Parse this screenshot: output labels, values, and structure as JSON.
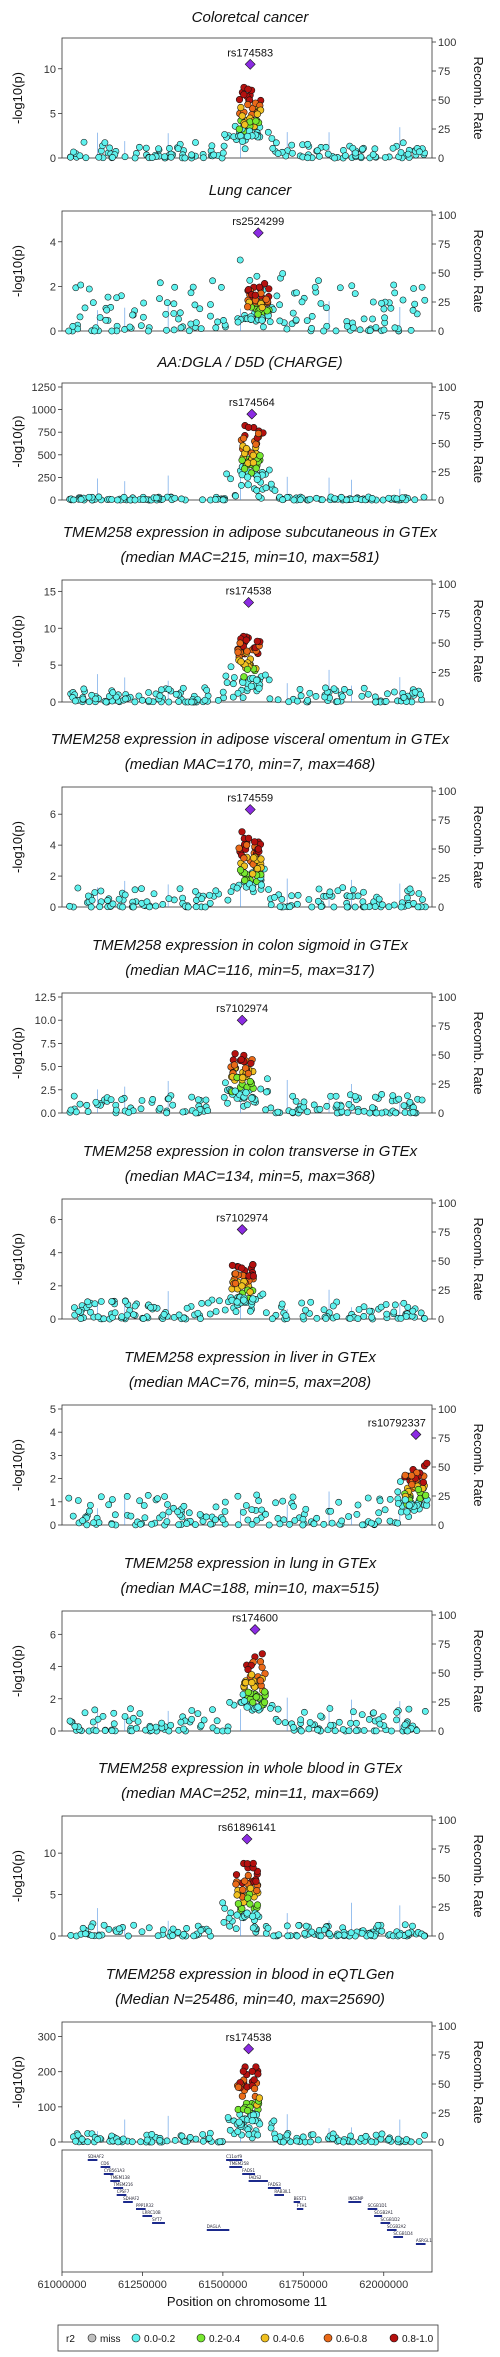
{
  "chart_data": {
    "type": "scatter",
    "x_range": [
      61000000,
      62150000
    ],
    "x_ticks": [
      61000000,
      61250000,
      61500000,
      61750000,
      62000000
    ],
    "x_tick_labels": [
      "61000000",
      "61250000",
      "61500000",
      "61750000",
      "62000000"
    ],
    "xlabel": "Position on chromosome 11",
    "ylabel_left": "-log10(p)",
    "ylabel_right": "Recomb. Rate",
    "right_ticks": [
      0,
      25,
      50,
      75,
      100
    ],
    "legend": {
      "title": "r2",
      "entries": [
        {
          "label": "miss",
          "color": "#bfbfbf"
        },
        {
          "label": "0.0-0.2",
          "color": "#5ff2ee"
        },
        {
          "label": "0.2-0.4",
          "color": "#77e830"
        },
        {
          "label": "0.4-0.6",
          "color": "#f0c020"
        },
        {
          "label": "0.6-0.8",
          "color": "#ea6a18"
        },
        {
          "label": "0.8-1.0",
          "color": "#b5110f"
        }
      ]
    },
    "panels": [
      {
        "title_lines": [
          "Coloretcal cancer"
        ],
        "lead_snp": "rs174583",
        "lead_x": 61585000,
        "lead_y": 10.5,
        "ymax": 13,
        "y_ticks": [
          0,
          5,
          10
        ],
        "peak": 9.0,
        "bg": 1.8
      },
      {
        "title_lines": [
          "Lung cancer"
        ],
        "lead_snp": "rs2524299",
        "lead_x": 61610000,
        "lead_y": 4.4,
        "ymax": 5.2,
        "y_ticks": [
          0,
          2,
          4
        ],
        "peak": 2.2,
        "bg": 2.5
      },
      {
        "title_lines": [
          "AA:DGLA / D5D (CHARGE)"
        ],
        "lead_snp": "rs174564",
        "lead_x": 61590000,
        "lead_y": 950,
        "ymax": 1250,
        "y_ticks": [
          0,
          250,
          500,
          750,
          1000,
          1250
        ],
        "peak": 950,
        "bg": 35
      },
      {
        "title_lines": [
          "TMEM258 expression in adipose subcutaneous in GTEx",
          "(median MAC=215, min=10, max=581)"
        ],
        "lead_snp": "rs174538",
        "lead_x": 61580000,
        "lead_y": 13.5,
        "ymax": 16,
        "y_ticks": [
          0,
          5,
          10,
          15
        ],
        "peak": 10,
        "bg": 2.0
      },
      {
        "title_lines": [
          "TMEM258 expression in adipose visceral omentum in GTEx",
          "(median MAC=170, min=7, max=468)"
        ],
        "lead_snp": "rs174559",
        "lead_x": 61585000,
        "lead_y": 6.3,
        "ymax": 7.5,
        "y_ticks": [
          0,
          2,
          4,
          6
        ],
        "peak": 5.0,
        "bg": 1.3
      },
      {
        "title_lines": [
          "TMEM258 expression in colon sigmoid in GTEx",
          "(median MAC=116, min=5, max=317)"
        ],
        "lead_snp": "rs7102974",
        "lead_x": 61560000,
        "lead_y": 10.0,
        "ymax": 12.5,
        "y_ticks": [
          0,
          2.5,
          5,
          7.5,
          10,
          12.5
        ],
        "y_tick_labels": [
          "0.0",
          "2.5",
          "5.0",
          "7.5",
          "10.0",
          "12.5"
        ],
        "peak": 7.5,
        "bg": 2.0
      },
      {
        "title_lines": [
          "TMEM258 expression in colon transverse in GTEx",
          "(median MAC=134, min=5, max=368)"
        ],
        "lead_snp": "rs7102974",
        "lead_x": 61560000,
        "lead_y": 5.4,
        "ymax": 7,
        "y_ticks": [
          0,
          2,
          4,
          6
        ],
        "peak": 3.8,
        "bg": 1.2
      },
      {
        "title_lines": [
          "TMEM258 expression in liver in GTEx",
          "(median MAC=76, min=5, max=208)"
        ],
        "lead_snp": "rs10792337",
        "lead_x": 62100000,
        "lead_y": 3.9,
        "ymax": 5,
        "y_ticks": [
          0,
          1,
          2,
          3,
          4,
          5
        ],
        "peak": 3.0,
        "bg": 1.3,
        "peak_center": 62100000
      },
      {
        "title_lines": [
          "TMEM258 expression in lung in GTEx",
          "(median MAC=188, min=10, max=515)"
        ],
        "lead_snp": "rs174600",
        "lead_x": 61600000,
        "lead_y": 6.3,
        "ymax": 7.2,
        "y_ticks": [
          0,
          2,
          4,
          6
        ],
        "peak": 5.6,
        "bg": 1.4
      },
      {
        "title_lines": [
          "TMEM258 expression in whole blood in GTEx",
          "(median MAC=252, min=11, max=669)"
        ],
        "lead_snp": "rs61896141",
        "lead_x": 61575000,
        "lead_y": 11.7,
        "ymax": 14,
        "y_ticks": [
          0,
          5,
          10
        ],
        "peak": 9.5,
        "bg": 1.5
      },
      {
        "title_lines": [
          "TMEM258 expression in blood in eQTLGen",
          "(Median N=25486, min=40, max=25690)"
        ],
        "lead_snp": "rs174538",
        "lead_x": 61580000,
        "lead_y": 265,
        "ymax": 330,
        "y_ticks": [
          0,
          100,
          200,
          300
        ],
        "peak": 230,
        "bg": 25
      }
    ],
    "genes": [
      {
        "name": "SDHAF2",
        "start": 61080000,
        "end": 61110000,
        "row": 0
      },
      {
        "name": "CD6",
        "start": 61120000,
        "end": 61150000,
        "row": 1
      },
      {
        "name": "CYB561A3",
        "start": 61130000,
        "end": 61160000,
        "row": 2
      },
      {
        "name": "TMEM138",
        "start": 61150000,
        "end": 61180000,
        "row": 3
      },
      {
        "name": "TMEM216",
        "start": 61160000,
        "end": 61190000,
        "row": 4
      },
      {
        "name": "CPSF7",
        "start": 61170000,
        "end": 61200000,
        "row": 5
      },
      {
        "name": "SDHAF2",
        "start": 61190000,
        "end": 61220000,
        "row": 6
      },
      {
        "name": "PPP1R32",
        "start": 61230000,
        "end": 61260000,
        "row": 7
      },
      {
        "name": "LRRC10B",
        "start": 61250000,
        "end": 61280000,
        "row": 8
      },
      {
        "name": "SYT7",
        "start": 61280000,
        "end": 61320000,
        "row": 9
      },
      {
        "name": "DAGLA",
        "start": 61450000,
        "end": 61520000,
        "row": 10
      },
      {
        "name": "C11orf9",
        "start": 61510000,
        "end": 61560000,
        "row": 0
      },
      {
        "name": "TMEM258",
        "start": 61520000,
        "end": 61560000,
        "row": 1
      },
      {
        "name": "FADS1",
        "start": 61560000,
        "end": 61600000,
        "row": 2
      },
      {
        "name": "FADS2",
        "start": 61580000,
        "end": 61640000,
        "row": 3
      },
      {
        "name": "FADS3",
        "start": 61640000,
        "end": 61680000,
        "row": 4
      },
      {
        "name": "RAB3IL1",
        "start": 61660000,
        "end": 61690000,
        "row": 5
      },
      {
        "name": "BEST1",
        "start": 61720000,
        "end": 61740000,
        "row": 6
      },
      {
        "name": "FTH1",
        "start": 61730000,
        "end": 61750000,
        "row": 7
      },
      {
        "name": "INCENP",
        "start": 61890000,
        "end": 61930000,
        "row": 6
      },
      {
        "name": "SCGB1D1",
        "start": 61950000,
        "end": 61980000,
        "row": 7
      },
      {
        "name": "SCGB2A1",
        "start": 61970000,
        "end": 61995000,
        "row": 8
      },
      {
        "name": "SCGB1D2",
        "start": 61990000,
        "end": 62020000,
        "row": 9
      },
      {
        "name": "SCGB2A2",
        "start": 62010000,
        "end": 62040000,
        "row": 10
      },
      {
        "name": "SCGB1D4",
        "start": 62030000,
        "end": 62060000,
        "row": 11
      },
      {
        "name": "ASRGL1",
        "start": 62100000,
        "end": 62130000,
        "row": 12
      }
    ]
  }
}
